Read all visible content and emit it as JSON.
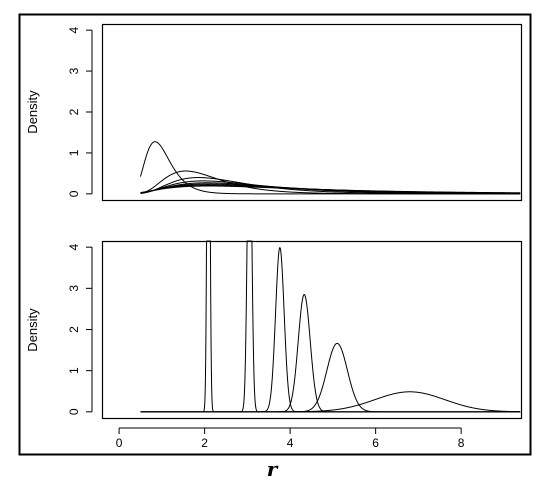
{
  "chart_data": {
    "type": "line",
    "xlabel": "r",
    "xlim": [
      -0.4,
      9.4
    ],
    "x_ticks": [
      0,
      2,
      4,
      6,
      8
    ],
    "panels": [
      {
        "name": "top",
        "ylabel": "Density",
        "ylim": [
          -0.15,
          4.15
        ],
        "y_ticks": [
          0,
          1,
          2,
          3,
          4
        ],
        "curves": [
          {
            "type": "lognormal",
            "mu": -0.05,
            "sigma": 0.35
          },
          {
            "type": "lognormal",
            "mu": 0.62,
            "sigma": 0.42
          },
          {
            "type": "lognormal",
            "mu": 0.85,
            "sigma": 0.48
          },
          {
            "type": "lognormal",
            "mu": 0.98,
            "sigma": 0.55
          },
          {
            "type": "lognormal",
            "mu": 1.08,
            "sigma": 0.6
          },
          {
            "type": "lognormal",
            "mu": 1.15,
            "sigma": 0.65
          },
          {
            "type": "lognormal",
            "mu": 1.22,
            "sigma": 0.7
          },
          {
            "type": "lognormal",
            "mu": 1.3,
            "sigma": 0.75
          }
        ]
      },
      {
        "name": "bottom",
        "ylabel": "Density",
        "ylim": [
          -0.15,
          4.15
        ],
        "y_ticks": [
          0,
          1,
          2,
          3,
          4
        ],
        "curves": [
          {
            "type": "normal",
            "mean": 2.09,
            "sd": 0.03
          },
          {
            "type": "normal",
            "mean": 3.05,
            "sd": 0.05
          },
          {
            "type": "normal",
            "mean": 3.76,
            "sd": 0.1
          },
          {
            "type": "normal",
            "mean": 4.33,
            "sd": 0.14
          },
          {
            "type": "normal",
            "mean": 5.1,
            "sd": 0.24
          },
          {
            "type": "normal",
            "mean": 6.8,
            "sd": 0.82
          }
        ]
      }
    ]
  }
}
